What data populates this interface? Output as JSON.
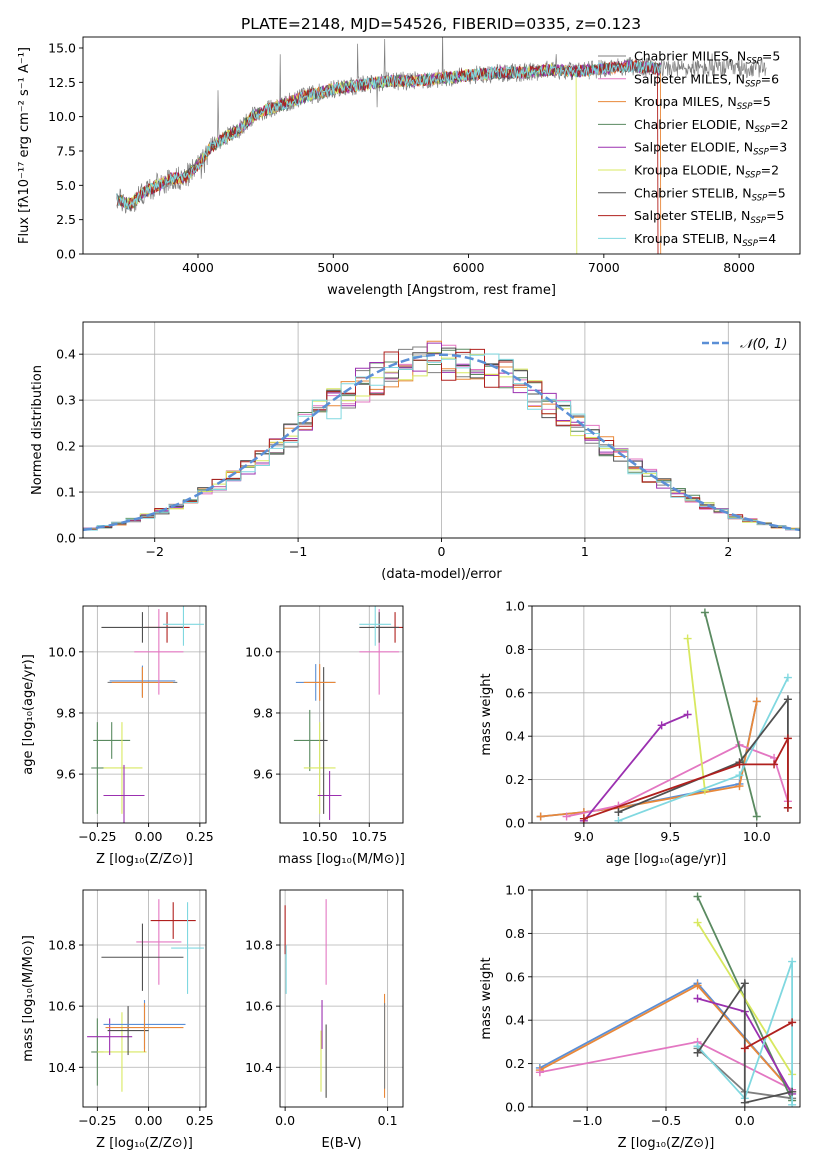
{
  "figure_title": "PLATE=2148, MJD=54526, FIBERID=0335, z=0.123",
  "legend_colors": [
    "#7f7f7f",
    "#e377c2",
    "#e8883a",
    "#5a8a60",
    "#9b30b0",
    "#d8e860",
    "#505050",
    "#b0201e",
    "#80d8e0"
  ],
  "chart_data": [
    {
      "id": "spectrum",
      "type": "line",
      "xlabel": "wavelength [Angstrom, rest frame]",
      "ylabel": "Flux [fλ10⁻¹⁷ erg cm⁻² s⁻¹ A⁻¹]",
      "xlim": [
        3150,
        8450
      ],
      "ylim": [
        0,
        15.8
      ],
      "xticks": [
        "4000",
        "5000",
        "6000",
        "7000",
        "8000"
      ],
      "yticks": [
        "0.0",
        "2.5",
        "5.0",
        "7.5",
        "10.0",
        "12.5",
        "15.0"
      ],
      "continuum": {
        "x": [
          3400,
          3500,
          3600,
          3700,
          3800,
          3900,
          4000,
          4100,
          4200,
          4300,
          4400,
          4500,
          4600,
          4800,
          5000,
          5200,
          5400,
          5600,
          5800,
          6000,
          6200,
          6400,
          6600,
          6800,
          7000,
          7200,
          7400
        ],
        "y": [
          4.0,
          3.6,
          4.5,
          5.0,
          5.5,
          5.5,
          6.5,
          7.8,
          8.5,
          9.0,
          10.0,
          10.5,
          10.8,
          11.5,
          12.0,
          12.3,
          12.6,
          12.6,
          12.8,
          13.0,
          13.2,
          13.2,
          13.4,
          13.3,
          13.5,
          13.7,
          13.5
        ]
      },
      "series": [
        {
          "name": "Chabrier MILES, N_SSP=5",
          "color": "#7f7f7f"
        },
        {
          "name": "Salpeter MILES, N_SSP=6",
          "color": "#e377c2"
        },
        {
          "name": "Kroupa MILES, N_SSP=5",
          "color": "#e8883a"
        },
        {
          "name": "Chabrier ELODIE, N_SSP=2",
          "color": "#5a8a60"
        },
        {
          "name": "Salpeter ELODIE, N_SSP=3",
          "color": "#9b30b0"
        },
        {
          "name": "Kroupa ELODIE, N_SSP=2",
          "color": "#d8e860"
        },
        {
          "name": "Chabrier STELIB, N_SSP=5",
          "color": "#505050"
        },
        {
          "name": "Salpeter STELIB, N_SSP=5",
          "color": "#b0201e"
        },
        {
          "name": "Kroupa STELIB, N_SSP=4",
          "color": "#80d8e0"
        }
      ],
      "legend_display": [
        [
          "Chabrier MILES, N",
          "SSP",
          "=5"
        ],
        [
          "Salpeter MILES, N",
          "SSP",
          "=6"
        ],
        [
          "Kroupa MILES, N",
          "SSP",
          "=5"
        ],
        [
          "Chabrier ELODIE, N",
          "SSP",
          "=2"
        ],
        [
          "Salpeter ELODIE, N",
          "SSP",
          "=3"
        ],
        [
          "Kroupa ELODIE, N",
          "SSP",
          "=2"
        ],
        [
          "Chabrier STELIB, N",
          "SSP",
          "=5"
        ],
        [
          "Salpeter STELIB, N",
          "SSP",
          "=5"
        ],
        [
          "Kroupa STELIB, N",
          "SSP",
          "=4"
        ]
      ],
      "legend": "upper right",
      "grid": false
    },
    {
      "id": "residuals",
      "type": "histogram",
      "xlabel": "(data-model)/error",
      "ylabel": "Normed distribution",
      "xlim": [
        -2.5,
        2.5
      ],
      "ylim": [
        0,
        0.47
      ],
      "xticks": [
        "−2",
        "−1",
        "0",
        "1",
        "2"
      ],
      "yticks": [
        "0.0",
        "0.1",
        "0.2",
        "0.3",
        "0.4"
      ],
      "bin_width": 0.1,
      "bins_from": -2.5,
      "reference_curve": {
        "name": "𝒩(0, 1)",
        "style": "dashed",
        "color": "#5b8fd6"
      },
      "legend": "upper right",
      "grid": true
    },
    {
      "id": "age_vs_Z",
      "type": "errorbar",
      "xlabel": "Z [log₁₀(Z/Z⊙)]",
      "ylabel": "age  [log₁₀(age/yr)]",
      "xlim": [
        -0.32,
        0.28
      ],
      "ylim": [
        9.44,
        10.15
      ],
      "xticks": [
        "−0.25",
        "0.00",
        "0.25"
      ],
      "yticks": [
        "9.6",
        "9.8",
        "10.0"
      ],
      "points": [
        {
          "x": -0.18,
          "y": 9.71,
          "xe": 0.09,
          "ye": 0.06,
          "color": "#5a8a60"
        },
        {
          "x": -0.13,
          "y": 9.62,
          "xe": 0.1,
          "ye": 0.15,
          "color": "#d8e860"
        },
        {
          "x": -0.12,
          "y": 9.53,
          "xe": 0.1,
          "ye": 0.1,
          "color": "#9b30b0"
        },
        {
          "x": -0.25,
          "y": 9.62,
          "xe": 0.03,
          "ye": 0.15,
          "color": "#5a8a60"
        },
        {
          "x": -0.03,
          "y": 9.9,
          "xe": 0.17,
          "ye": 0.05,
          "color": "#7f7f7f"
        },
        {
          "x": -0.03,
          "y": 9.905,
          "xe": 0.16,
          "ye": 0.05,
          "color": "#5b8fd6"
        },
        {
          "x": -0.03,
          "y": 9.9,
          "xe": 0.15,
          "ye": 0.05,
          "color": "#e8883a"
        },
        {
          "x": 0.05,
          "y": 10.0,
          "xe": 0.12,
          "ye": 0.14,
          "color": "#e377c2"
        },
        {
          "x": 0.09,
          "y": 10.08,
          "xe": 0.11,
          "ye": 0.05,
          "color": "#b0201e"
        },
        {
          "x": -0.03,
          "y": 10.08,
          "xe": 0.2,
          "ye": 0.05,
          "color": "#505050"
        },
        {
          "x": 0.17,
          "y": 10.09,
          "xe": 0.1,
          "ye": 0.07,
          "color": "#80d8e0"
        }
      ],
      "grid": true
    },
    {
      "id": "age_vs_mass",
      "type": "errorbar",
      "xlabel": "mass [log₁₀(M/M⊙)]",
      "ylabel": "",
      "xlim": [
        10.3,
        10.92
      ],
      "ylim": [
        9.44,
        10.15
      ],
      "xticks": [
        "10.50",
        "10.75"
      ],
      "yticks": [
        "9.6",
        "9.8",
        "10.0"
      ],
      "points": [
        {
          "x": 10.45,
          "y": 9.71,
          "xe": 0.08,
          "ye": 0.1,
          "color": "#5a8a60"
        },
        {
          "x": 10.5,
          "y": 9.62,
          "xe": 0.08,
          "ye": 0.15,
          "color": "#d8e860"
        },
        {
          "x": 10.55,
          "y": 9.53,
          "xe": 0.06,
          "ye": 0.08,
          "color": "#9b30b0"
        },
        {
          "x": 10.52,
          "y": 9.71,
          "xe": 0.02,
          "ye": 0.24,
          "color": "#505050"
        },
        {
          "x": 10.48,
          "y": 9.9,
          "xe": 0.1,
          "ye": 0.06,
          "color": "#5b8fd6"
        },
        {
          "x": 10.5,
          "y": 9.9,
          "xe": 0.08,
          "ye": 0.06,
          "color": "#e8883a"
        },
        {
          "x": 10.8,
          "y": 10.0,
          "xe": 0.1,
          "ye": 0.14,
          "color": "#e377c2"
        },
        {
          "x": 10.88,
          "y": 10.08,
          "xe": 0.12,
          "ye": 0.05,
          "color": "#b0201e"
        },
        {
          "x": 10.8,
          "y": 10.08,
          "xe": 0.1,
          "ye": 0.05,
          "color": "#505050"
        },
        {
          "x": 10.78,
          "y": 10.09,
          "xe": 0.08,
          "ye": 0.07,
          "color": "#80d8e0"
        }
      ],
      "grid": true
    },
    {
      "id": "weight_vs_age",
      "type": "line",
      "xlabel": "age  [log₁₀(age/yr)]",
      "ylabel": "mass weight",
      "xlim": [
        8.7,
        10.25
      ],
      "ylim": [
        0,
        1
      ],
      "xticks": [
        "9.0",
        "9.5",
        "10.0"
      ],
      "yticks": [
        "0.0",
        "0.2",
        "0.4",
        "0.6",
        "0.8",
        "1.0"
      ],
      "series": [
        {
          "color": "#5b8fd6",
          "x": [
            8.75,
            9.0,
            9.2,
            9.9,
            10.0
          ],
          "y": [
            0.03,
            0.05,
            0.07,
            0.18,
            0.56
          ]
        },
        {
          "color": "#e8883a",
          "x": [
            8.75,
            9.0,
            9.2,
            9.9,
            10.0
          ],
          "y": [
            0.03,
            0.05,
            0.07,
            0.17,
            0.56
          ]
        },
        {
          "color": "#e377c2",
          "x": [
            8.9,
            9.2,
            9.9,
            10.1,
            10.18
          ],
          "y": [
            0.03,
            0.08,
            0.36,
            0.3,
            0.1
          ]
        },
        {
          "color": "#9b30b0",
          "x": [
            9.0,
            9.45,
            9.6
          ],
          "y": [
            0.01,
            0.45,
            0.5
          ]
        },
        {
          "color": "#d8e860",
          "x": [
            9.6,
            9.7
          ],
          "y": [
            0.85,
            0.15
          ]
        },
        {
          "color": "#5a8a60",
          "x": [
            9.7,
            10.0
          ],
          "y": [
            0.97,
            0.03
          ]
        },
        {
          "color": "#80d8e0",
          "x": [
            9.2,
            9.9,
            10.18
          ],
          "y": [
            0.01,
            0.22,
            0.67
          ]
        },
        {
          "color": "#505050",
          "x": [
            9.2,
            9.9,
            10.18,
            10.18
          ],
          "y": [
            0.05,
            0.28,
            0.57,
            0.07
          ]
        },
        {
          "color": "#b0201e",
          "x": [
            9.0,
            9.9,
            10.1,
            10.18,
            10.18
          ],
          "y": [
            0.02,
            0.27,
            0.27,
            0.39,
            0.07
          ]
        }
      ],
      "grid": true
    },
    {
      "id": "mass_vs_Z",
      "type": "errorbar",
      "xlabel": "Z [log₁₀(Z/Z⊙)]",
      "ylabel": "mass [log₁₀(M/M⊙)]",
      "xlim": [
        -0.32,
        0.28
      ],
      "ylim": [
        10.27,
        10.98
      ],
      "xticks": [
        "−0.25",
        "0.00",
        "0.25"
      ],
      "yticks": [
        "10.4",
        "10.6",
        "10.8"
      ],
      "points": [
        {
          "x": -0.25,
          "y": 10.45,
          "xe": 0.03,
          "ye": 0.11,
          "color": "#5a8a60"
        },
        {
          "x": -0.13,
          "y": 10.45,
          "xe": 0.12,
          "ye": 0.13,
          "color": "#d8e860"
        },
        {
          "x": -0.19,
          "y": 10.5,
          "xe": 0.11,
          "ye": 0.06,
          "color": "#9b30b0"
        },
        {
          "x": -0.1,
          "y": 10.52,
          "xe": 0.1,
          "ye": 0.08,
          "color": "#505050"
        },
        {
          "x": -0.02,
          "y": 10.54,
          "xe": 0.2,
          "ye": 0.08,
          "color": "#5b8fd6"
        },
        {
          "x": -0.02,
          "y": 10.53,
          "xe": 0.19,
          "ye": 0.08,
          "color": "#e8883a"
        },
        {
          "x": 0.05,
          "y": 10.81,
          "xe": 0.11,
          "ye": 0.14,
          "color": "#e377c2"
        },
        {
          "x": 0.12,
          "y": 10.88,
          "xe": 0.11,
          "ye": 0.06,
          "color": "#b0201e"
        },
        {
          "x": -0.03,
          "y": 10.76,
          "xe": 0.2,
          "ye": 0.11,
          "color": "#505050"
        },
        {
          "x": 0.19,
          "y": 10.79,
          "xe": 0.08,
          "ye": 0.15,
          "color": "#80d8e0"
        }
      ],
      "grid": true
    },
    {
      "id": "mass_vs_EBV",
      "type": "errorbar",
      "xlabel": "E(B-V)",
      "ylabel": "",
      "xlim": [
        -0.005,
        0.115
      ],
      "ylim": [
        10.27,
        10.98
      ],
      "xticks": [
        "0.0",
        "0.1"
      ],
      "yticks": [
        "10.4",
        "10.6",
        "10.8"
      ],
      "points": [
        {
          "x": 0.0,
          "y": 10.85,
          "xe": 0,
          "ye": 0.08,
          "color": "#b0201e"
        },
        {
          "x": 0.001,
          "y": 10.72,
          "xe": 0,
          "ye": 0.08,
          "color": "#80d8e0"
        },
        {
          "x": 0.04,
          "y": 10.81,
          "xe": 0,
          "ye": 0.14,
          "color": "#e377c2"
        },
        {
          "x": 0.036,
          "y": 10.54,
          "xe": 0,
          "ye": 0.08,
          "color": "#9b30b0"
        },
        {
          "x": 0.035,
          "y": 10.42,
          "xe": 0,
          "ye": 0.1,
          "color": "#d8e860"
        },
        {
          "x": 0.04,
          "y": 10.42,
          "xe": 0,
          "ye": 0.12,
          "color": "#505050"
        },
        {
          "x": 0.097,
          "y": 10.47,
          "xe": 0,
          "ye": 0.17,
          "color": "#e8883a"
        },
        {
          "x": 0.097,
          "y": 10.47,
          "xe": 0,
          "ye": 0.14,
          "color": "#7f7f7f"
        }
      ],
      "grid": true
    },
    {
      "id": "weight_vs_Z",
      "type": "line",
      "xlabel": "Z [log₁₀(Z/Z⊙)]",
      "ylabel": "mass weight",
      "xlim": [
        -1.35,
        0.35
      ],
      "ylim": [
        0,
        1
      ],
      "xticks": [
        "−1.0",
        "−0.5",
        "0.0"
      ],
      "yticks": [
        "0.0",
        "0.2",
        "0.4",
        "0.6",
        "0.8",
        "1.0"
      ],
      "series": [
        {
          "color": "#5b8fd6",
          "x": [
            -1.3,
            -0.3,
            0.3
          ],
          "y": [
            0.18,
            0.57,
            0.07
          ]
        },
        {
          "color": "#e8883a",
          "x": [
            -1.3,
            -0.3,
            0.3
          ],
          "y": [
            0.17,
            0.56,
            0.07
          ]
        },
        {
          "color": "#e377c2",
          "x": [
            -1.3,
            -0.3,
            0.3
          ],
          "y": [
            0.16,
            0.3,
            0.08
          ]
        },
        {
          "color": "#5a8a60",
          "x": [
            -0.3,
            0.3
          ],
          "y": [
            0.97,
            0.03
          ]
        },
        {
          "color": "#d8e860",
          "x": [
            -0.3,
            0.3
          ],
          "y": [
            0.85,
            0.15
          ]
        },
        {
          "color": "#9b30b0",
          "x": [
            -0.3,
            0.0,
            0.3
          ],
          "y": [
            0.5,
            0.44,
            0.06
          ]
        },
        {
          "color": "#7f7f7f",
          "x": [
            -0.3,
            0.0,
            0.3
          ],
          "y": [
            0.27,
            0.07,
            0.04
          ]
        },
        {
          "color": "#80d8e0",
          "x": [
            -0.3,
            0.0,
            0.3,
            0.3
          ],
          "y": [
            0.28,
            0.04,
            0.67,
            0.01
          ]
        },
        {
          "color": "#505050",
          "x": [
            -0.3,
            0.0,
            0.0,
            0.3
          ],
          "y": [
            0.25,
            0.57,
            0.02,
            0.07
          ]
        },
        {
          "color": "#b0201e",
          "x": [
            0.0,
            0.3
          ],
          "y": [
            0.27,
            0.39
          ]
        }
      ],
      "grid": true
    }
  ]
}
